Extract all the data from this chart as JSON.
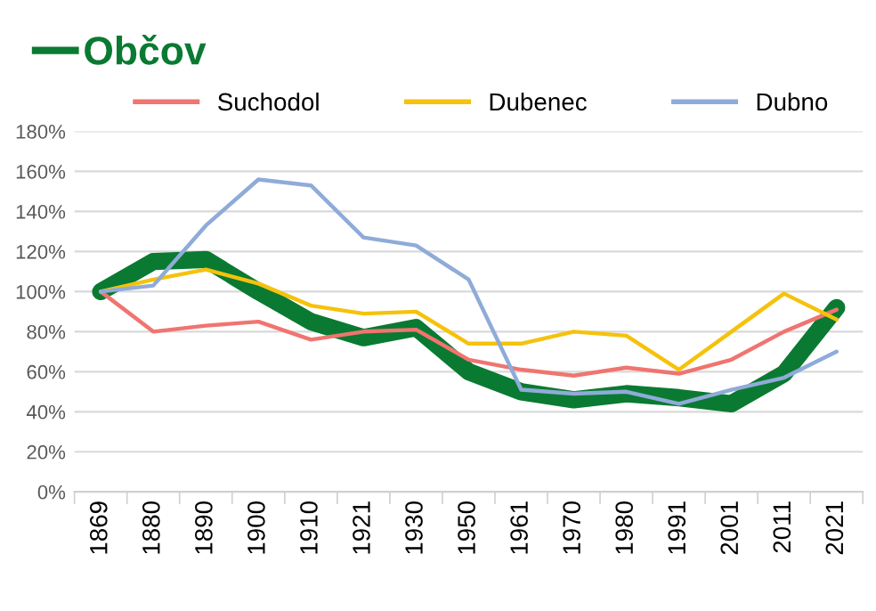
{
  "chart_data": {
    "type": "line",
    "categories": [
      "1869",
      "1880",
      "1890",
      "1900",
      "1910",
      "1921",
      "1930",
      "1950",
      "1961",
      "1970",
      "1980",
      "1991",
      "2001",
      "2011",
      "2021"
    ],
    "series": [
      {
        "name": "Občov",
        "color": "#0a7a32",
        "values": [
          100,
          115,
          116,
          100,
          85,
          77,
          82,
          60,
          50,
          46,
          49,
          47,
          44,
          59,
          92
        ]
      },
      {
        "name": "Suchodol",
        "color": "#f07470",
        "values": [
          100,
          80,
          83,
          85,
          76,
          80,
          81,
          66,
          61,
          58,
          62,
          59,
          66,
          80,
          91
        ]
      },
      {
        "name": "Dubenec",
        "color": "#f5c20c",
        "values": [
          100,
          106,
          111,
          104,
          93,
          89,
          90,
          74,
          74,
          80,
          78,
          61,
          80,
          99,
          86
        ]
      },
      {
        "name": "Dubno",
        "color": "#8fabd8",
        "values": [
          100,
          103,
          133,
          156,
          153,
          127,
          123,
          106,
          51,
          49,
          50,
          44,
          51,
          57,
          70
        ]
      }
    ],
    "ylim": [
      0,
      180
    ],
    "yticks": [
      {
        "value": 0,
        "label": "0%"
      },
      {
        "value": 20,
        "label": "20%"
      },
      {
        "value": 40,
        "label": "40%"
      },
      {
        "value": 60,
        "label": "60%"
      },
      {
        "value": 80,
        "label": "80%"
      },
      {
        "value": 100,
        "label": "100%"
      },
      {
        "value": 120,
        "label": "120%"
      },
      {
        "value": 140,
        "label": "140%"
      },
      {
        "value": 160,
        "label": "160%"
      },
      {
        "value": 180,
        "label": "180%"
      }
    ],
    "grid": "y",
    "legend": "top",
    "marker": "none",
    "line_style": "solid"
  }
}
